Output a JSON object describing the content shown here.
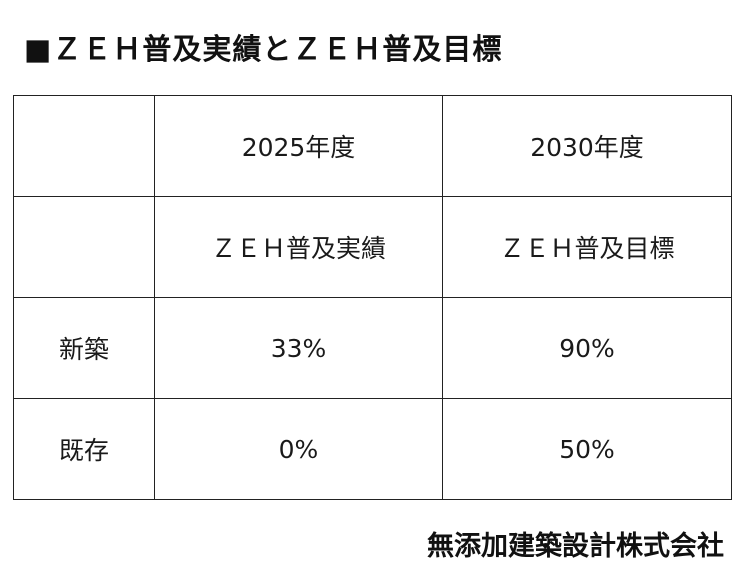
{
  "title": "■ＺＥＨ普及実績とＺＥＨ普及目標",
  "table": {
    "header_years": [
      "2025年度",
      "2030年度"
    ],
    "header_labels": [
      "ＺＥＨ普及実績",
      "ＺＥＨ普及目標"
    ],
    "rows": [
      {
        "label": "新築",
        "values": [
          "33%",
          "90%"
        ]
      },
      {
        "label": "既存",
        "values": [
          "0%",
          "50%"
        ]
      }
    ]
  },
  "footer": "無添加建築設計株式会社"
}
